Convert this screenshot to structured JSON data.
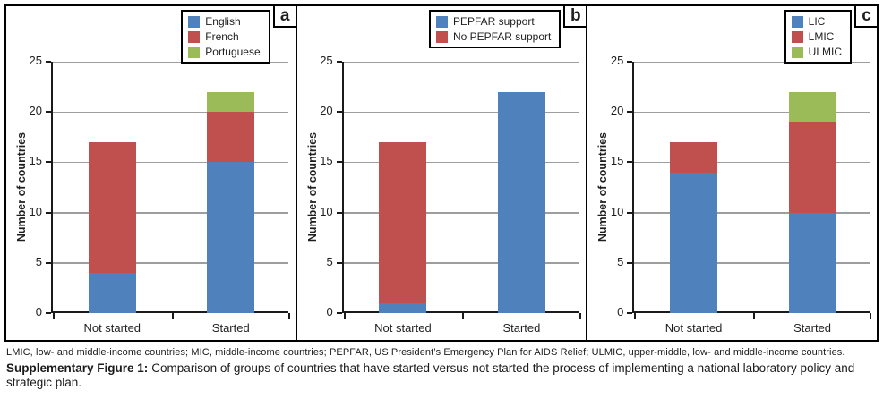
{
  "figure": {
    "caption_abbrev": "LMIC, low- and middle-income countries; MIC, middle-income countries; PEPFAR, US President’s Emergency Plan for AIDS Relief; ULMIC, upper-middle, low- and middle-income countries.",
    "caption_label": "Supplementary Figure 1:",
    "caption_text": "Comparison of groups of countries that have started versus not started the process of implementing a national laboratory policy and strategic plan."
  },
  "colors": {
    "blue": "#4F81BD",
    "red": "#C0504D",
    "green": "#9BBB59",
    "grid": "#9e9e9e",
    "axis": "#1a1a1a"
  },
  "chart_data": [
    {
      "type": "bar",
      "stacked": true,
      "panel_label": "a",
      "categories": [
        "Not started",
        "Started"
      ],
      "series": [
        {
          "name": "English",
          "color": "#4F81BD",
          "values": [
            4,
            15
          ]
        },
        {
          "name": "French",
          "color": "#C0504D",
          "values": [
            13,
            5
          ]
        },
        {
          "name": "Portuguese",
          "color": "#9BBB59",
          "values": [
            0,
            2
          ]
        }
      ],
      "ylabel": "Number of countries",
      "xlabel": "",
      "ylim": [
        0,
        25
      ],
      "ytick_step": 5,
      "grid": true,
      "legend_position": "top-right"
    },
    {
      "type": "bar",
      "stacked": true,
      "panel_label": "b",
      "categories": [
        "Not started",
        "Started"
      ],
      "series": [
        {
          "name": "PEPFAR support",
          "color": "#4F81BD",
          "values": [
            1,
            22
          ]
        },
        {
          "name": "No PEPFAR support",
          "color": "#C0504D",
          "values": [
            16,
            0
          ]
        }
      ],
      "ylabel": "Number of countries",
      "xlabel": "",
      "ylim": [
        0,
        25
      ],
      "ytick_step": 5,
      "grid": true,
      "legend_position": "top-right"
    },
    {
      "type": "bar",
      "stacked": true,
      "panel_label": "c",
      "categories": [
        "Not started",
        "Started"
      ],
      "series": [
        {
          "name": "LIC",
          "color": "#4F81BD",
          "values": [
            14,
            10
          ]
        },
        {
          "name": "LMIC",
          "color": "#C0504D",
          "values": [
            3,
            9
          ]
        },
        {
          "name": "ULMIC",
          "color": "#9BBB59",
          "values": [
            0,
            3
          ]
        }
      ],
      "ylabel": "Number of countries",
      "xlabel": "",
      "ylim": [
        0,
        25
      ],
      "ytick_step": 5,
      "grid": true,
      "legend_position": "top-right"
    }
  ]
}
